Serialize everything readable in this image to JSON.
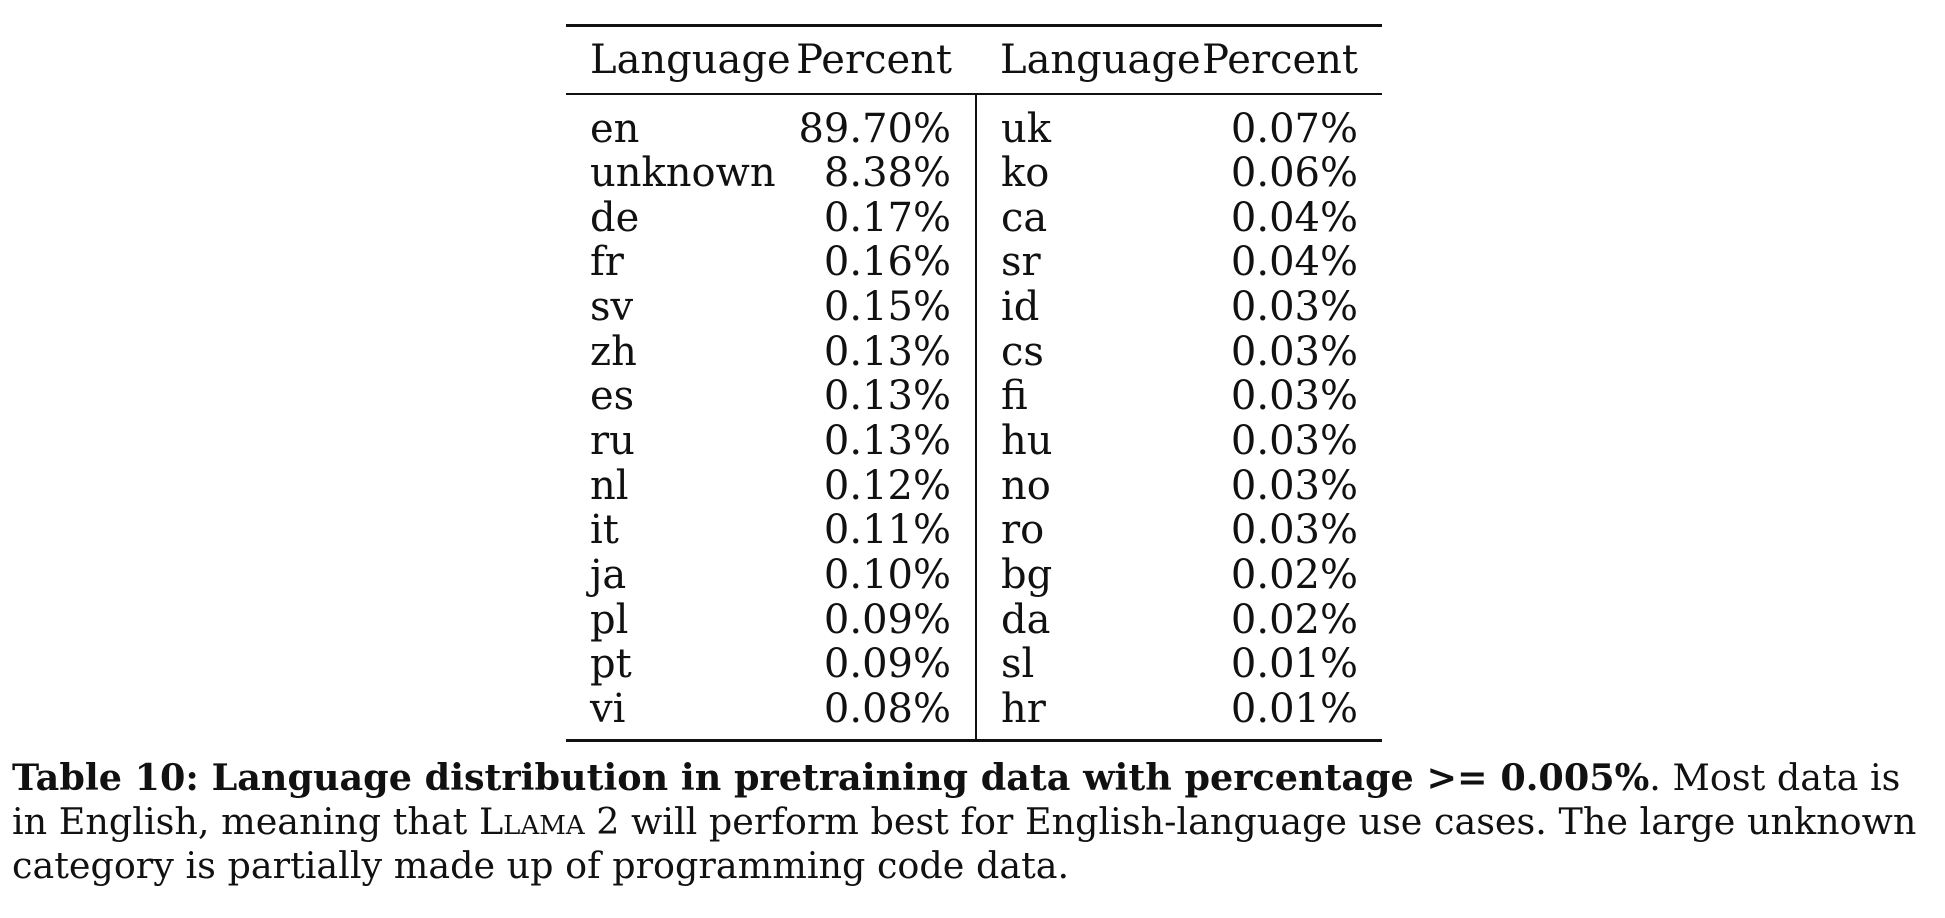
{
  "table": {
    "headers": [
      "Language",
      "Percent",
      "Language",
      "Percent"
    ],
    "rows": [
      {
        "lang1": "en",
        "pct1": "89.70%",
        "lang2": "uk",
        "pct2": "0.07%"
      },
      {
        "lang1": "unknown",
        "pct1": "8.38%",
        "lang2": "ko",
        "pct2": "0.06%"
      },
      {
        "lang1": "de",
        "pct1": "0.17%",
        "lang2": "ca",
        "pct2": "0.04%"
      },
      {
        "lang1": "fr",
        "pct1": "0.16%",
        "lang2": "sr",
        "pct2": "0.04%"
      },
      {
        "lang1": "sv",
        "pct1": "0.15%",
        "lang2": "id",
        "pct2": "0.03%"
      },
      {
        "lang1": "zh",
        "pct1": "0.13%",
        "lang2": "cs",
        "pct2": "0.03%"
      },
      {
        "lang1": "es",
        "pct1": "0.13%",
        "lang2": "fi",
        "pct2": "0.03%"
      },
      {
        "lang1": "ru",
        "pct1": "0.13%",
        "lang2": "hu",
        "pct2": "0.03%"
      },
      {
        "lang1": "nl",
        "pct1": "0.12%",
        "lang2": "no",
        "pct2": "0.03%"
      },
      {
        "lang1": "it",
        "pct1": "0.11%",
        "lang2": "ro",
        "pct2": "0.03%"
      },
      {
        "lang1": "ja",
        "pct1": "0.10%",
        "lang2": "bg",
        "pct2": "0.02%"
      },
      {
        "lang1": "pl",
        "pct1": "0.09%",
        "lang2": "da",
        "pct2": "0.02%"
      },
      {
        "lang1": "pt",
        "pct1": "0.09%",
        "lang2": "sl",
        "pct2": "0.01%"
      },
      {
        "lang1": "vi",
        "pct1": "0.08%",
        "lang2": "hr",
        "pct2": "0.01%"
      }
    ]
  },
  "caption": {
    "bold": "Table 10: Language distribution in pretraining data with percentage >= 0.005%",
    "text_1": ". Most data is in English, meaning that ",
    "model_name": "Llama 2",
    "text_2": " will perform best for English-language use cases. The large unknown category is partially made up of programming code data."
  }
}
